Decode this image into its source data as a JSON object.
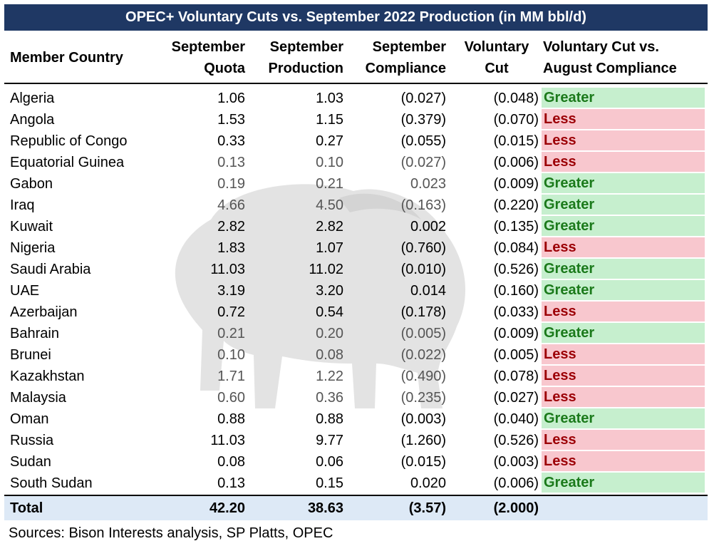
{
  "title": "OPEC+ Voluntary Cuts vs. September 2022 Production (in MM bbl/d)",
  "headers": {
    "country": "Member Country",
    "quota": [
      "September",
      "Quota"
    ],
    "production": [
      "September",
      "Production"
    ],
    "compliance": [
      "September",
      "Compliance"
    ],
    "cut": [
      "Voluntary",
      "Cut"
    ],
    "vs": [
      "Voluntary Cut vs.",
      "August Compliance"
    ]
  },
  "rows": [
    {
      "country": "Algeria",
      "quota": "1.06",
      "production": "1.03",
      "compliance": "(0.027)",
      "cut": "(0.048)",
      "status": "Greater"
    },
    {
      "country": "Angola",
      "quota": "1.53",
      "production": "1.15",
      "compliance": "(0.379)",
      "cut": "(0.070)",
      "status": "Less"
    },
    {
      "country": "Republic of Congo",
      "quota": "0.33",
      "production": "0.27",
      "compliance": "(0.055)",
      "cut": "(0.015)",
      "status": "Less"
    },
    {
      "country": "Equatorial Guinea",
      "quota": "0.13",
      "production": "0.10",
      "compliance": "(0.027)",
      "cut": "(0.006)",
      "status": "Less"
    },
    {
      "country": "Gabon",
      "quota": "0.19",
      "production": "0.21",
      "compliance": "0.023",
      "cut": "(0.009)",
      "status": "Greater"
    },
    {
      "country": "Iraq",
      "quota": "4.66",
      "production": "4.50",
      "compliance": "(0.163)",
      "cut": "(0.220)",
      "status": "Greater"
    },
    {
      "country": "Kuwait",
      "quota": "2.82",
      "production": "2.82",
      "compliance": "0.002",
      "cut": "(0.135)",
      "status": "Greater"
    },
    {
      "country": "Nigeria",
      "quota": "1.83",
      "production": "1.07",
      "compliance": "(0.760)",
      "cut": "(0.084)",
      "status": "Less"
    },
    {
      "country": "Saudi Arabia",
      "quota": "11.03",
      "production": "11.02",
      "compliance": "(0.010)",
      "cut": "(0.526)",
      "status": "Greater"
    },
    {
      "country": "UAE",
      "quota": "3.19",
      "production": "3.20",
      "compliance": "0.014",
      "cut": "(0.160)",
      "status": "Greater"
    },
    {
      "country": "Azerbaijan",
      "quota": "0.72",
      "production": "0.54",
      "compliance": "(0.178)",
      "cut": "(0.033)",
      "status": "Less"
    },
    {
      "country": "Bahrain",
      "quota": "0.21",
      "production": "0.20",
      "compliance": "(0.005)",
      "cut": "(0.009)",
      "status": "Greater"
    },
    {
      "country": "Brunei",
      "quota": "0.10",
      "production": "0.08",
      "compliance": "(0.022)",
      "cut": "(0.005)",
      "status": "Less"
    },
    {
      "country": "Kazakhstan",
      "quota": "1.71",
      "production": "1.22",
      "compliance": "(0.490)",
      "cut": "(0.078)",
      "status": "Less"
    },
    {
      "country": "Malaysia",
      "quota": "0.60",
      "production": "0.36",
      "compliance": "(0.235)",
      "cut": "(0.027)",
      "status": "Less"
    },
    {
      "country": "Oman",
      "quota": "0.88",
      "production": "0.88",
      "compliance": "(0.003)",
      "cut": "(0.040)",
      "status": "Greater"
    },
    {
      "country": "Russia",
      "quota": "11.03",
      "production": "9.77",
      "compliance": "(1.260)",
      "cut": "(0.526)",
      "status": "Less"
    },
    {
      "country": "Sudan",
      "quota": "0.08",
      "production": "0.06",
      "compliance": "(0.015)",
      "cut": "(0.003)",
      "status": "Less"
    },
    {
      "country": "South Sudan",
      "quota": "0.13",
      "production": "0.15",
      "compliance": "0.020",
      "cut": "(0.006)",
      "status": "Greater"
    }
  ],
  "total": {
    "label": "Total",
    "quota": "42.20",
    "production": "38.63",
    "compliance": "(3.57)",
    "cut": "(2.000)"
  },
  "source": "Sources: Bison Interests analysis, SP Platts, OPEC",
  "colors": {
    "title_bg": "#1f3864",
    "greater_bg": "#c6efce",
    "greater_text": "#1b7a1b",
    "less_bg": "#f8c7ce",
    "less_text": "#9c0006",
    "total_bg": "#dde9f6"
  },
  "watermark_icon": "bison-icon"
}
